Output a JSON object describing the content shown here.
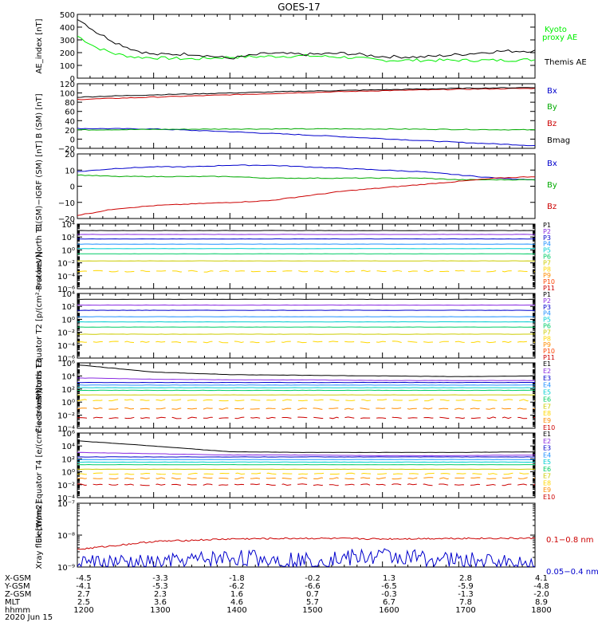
{
  "title": "GOES-17",
  "date_label": "2020 Jun 15",
  "footer": {
    "rows": [
      {
        "label": "X-GSM",
        "values": [
          "-4.5",
          "-3.3",
          "-1.8",
          "-0.2",
          "1.3",
          "2.8",
          "4.1"
        ]
      },
      {
        "label": "Y-GSM",
        "values": [
          "-4.1",
          "-5.3",
          "-6.2",
          "-6.6",
          "-6.5",
          "-5.9",
          "-4.8"
        ]
      },
      {
        "label": "Z-GSM",
        "values": [
          "2.7",
          "2.3",
          "1.6",
          "0.7",
          "-0.3",
          "-1.3",
          "-2.0"
        ]
      },
      {
        "label": "MLT",
        "values": [
          "2.5",
          "3.6",
          "4.6",
          "5.7",
          "6.7",
          "7.8",
          "8.9"
        ]
      },
      {
        "label": "hhmm",
        "values": [
          "1200",
          "1300",
          "1400",
          "1500",
          "1600",
          "1700",
          "1800"
        ]
      }
    ]
  },
  "chart_data": [
    {
      "type": "line",
      "ylabel": "AE_index [nT]",
      "ylim": [
        0,
        500
      ],
      "scale": "linear",
      "yticks": [
        "0",
        "100",
        "200",
        "300",
        "400",
        "500"
      ],
      "x_hours": [
        12,
        12.25,
        12.5,
        12.75,
        13,
        13.5,
        14,
        14.5,
        15,
        15.5,
        16,
        16.5,
        17,
        17.5,
        18
      ],
      "series": [
        {
          "name": "Kyoto proxy AE",
          "color": "#00ee00",
          "values": [
            330,
            240,
            190,
            165,
            160,
            150,
            165,
            170,
            175,
            165,
            140,
            140,
            140,
            140,
            145
          ]
        },
        {
          "name": "Themis AE",
          "color": "#000000",
          "values": [
            470,
            360,
            280,
            220,
            185,
            190,
            155,
            195,
            185,
            195,
            170,
            165,
            185,
            210,
            215
          ]
        }
      ],
      "legend": [
        "Kyoto",
        "proxy AE",
        "Themis AE"
      ]
    },
    {
      "type": "line",
      "ylabel": "B (SM) [nT]",
      "ylim": [
        -20,
        120
      ],
      "scale": "linear",
      "yticks": [
        "−20",
        "0",
        "20",
        "40",
        "60",
        "80",
        "100",
        "120"
      ],
      "x_hours": [
        12,
        13,
        14,
        15,
        16,
        17,
        18
      ],
      "series": [
        {
          "name": "Bx",
          "color": "#0000cc",
          "values": [
            23,
            22,
            16,
            9,
            1,
            -7,
            -14
          ]
        },
        {
          "name": "By",
          "color": "#00aa00",
          "values": [
            20,
            21,
            22,
            22,
            22,
            21,
            20
          ]
        },
        {
          "name": "Bz",
          "color": "#cc0000",
          "values": [
            86,
            91,
            96,
            101,
            105,
            108,
            110
          ]
        },
        {
          "name": "Bmag",
          "color": "#000000",
          "values": [
            91,
            96,
            100,
            104,
            107,
            110,
            112
          ]
        }
      ],
      "legend": [
        "Bx",
        "By",
        "Bz",
        "Bmag"
      ]
    },
    {
      "type": "line",
      "ylabel": "B (SM)−IGRF (SM) [nT]",
      "ylim": [
        -20,
        20
      ],
      "scale": "linear",
      "yticks": [
        "−20",
        "−10",
        "0",
        "10",
        "20"
      ],
      "x_hours": [
        12,
        12.5,
        13,
        13.5,
        14,
        14.5,
        15,
        15.5,
        16,
        16.5,
        17,
        17.5,
        18
      ],
      "series": [
        {
          "name": "Bx",
          "color": "#0000cc",
          "values": [
            9,
            11,
            12,
            12,
            13,
            13,
            12,
            11,
            10,
            9,
            7,
            5,
            4
          ]
        },
        {
          "name": "By",
          "color": "#00aa00",
          "values": [
            7,
            6,
            6,
            6,
            6,
            5,
            5,
            5,
            5,
            5,
            4,
            4,
            4
          ]
        },
        {
          "name": "Bz",
          "color": "#cc0000",
          "values": [
            -18,
            -14,
            -12,
            -11,
            -10,
            -9,
            -6,
            -3,
            -1,
            1,
            3,
            5,
            6
          ]
        }
      ],
      "legend": [
        "Bx",
        "By",
        "Bz"
      ]
    },
    {
      "type": "line",
      "ylabel": "Protons North T1",
      "ylim": [
        -6,
        4
      ],
      "scale": "log",
      "yticks": [
        "10⁻⁶",
        "10⁻⁴",
        "10⁻²",
        "10⁰",
        "10²",
        "10⁴"
      ],
      "series": [
        {
          "name": "P1",
          "color": "#000000",
          "values": [
            3.0
          ]
        },
        {
          "name": "P2",
          "color": "#8a2be2",
          "values": [
            2.4
          ]
        },
        {
          "name": "P3",
          "color": "#0000cc",
          "values": [
            1.7
          ]
        },
        {
          "name": "P4",
          "color": "#1e90ff",
          "values": [
            0.9
          ]
        },
        {
          "name": "P5",
          "color": "#00ced1",
          "values": [
            0.2
          ]
        },
        {
          "name": "P6",
          "color": "#00cc66",
          "values": [
            -0.6
          ]
        },
        {
          "name": "P7",
          "color": "#cccc00",
          "values": [
            -1.7
          ]
        },
        {
          "name": "P8",
          "color": "#ffd700",
          "values": [
            -3.3
          ]
        },
        {
          "name": "P9",
          "color": "#ff8c00",
          "values": []
        },
        {
          "name": "P10",
          "color": "#ff4500",
          "values": []
        },
        {
          "name": "P11",
          "color": "#cc0000",
          "values": []
        }
      ],
      "legend": [
        "P1",
        "P2",
        "P3",
        "P4",
        "P5",
        "P6",
        "P7",
        "P8",
        "P9",
        "P10",
        "P11"
      ]
    },
    {
      "type": "line",
      "ylabel": "Protons Equator T2 [p/(cm²-s-sr-keV)]",
      "ylim": [
        -6,
        4
      ],
      "scale": "log",
      "yticks": [
        "10⁻⁶",
        "10⁻⁴",
        "10⁻²",
        "10⁰",
        "10²",
        "10⁴"
      ],
      "series": [
        {
          "name": "P1",
          "color": "#000000",
          "values": [
            3.1
          ]
        },
        {
          "name": "P2",
          "color": "#8a2be2",
          "values": [
            2.2
          ]
        },
        {
          "name": "P3",
          "color": "#0000cc",
          "values": [
            1.4
          ]
        },
        {
          "name": "P4",
          "color": "#1e90ff",
          "values": [
            0.4
          ]
        },
        {
          "name": "P5",
          "color": "#00ced1",
          "values": [
            -0.4
          ]
        },
        {
          "name": "P6",
          "color": "#00cc66",
          "values": [
            -1.2
          ]
        },
        {
          "name": "P7",
          "color": "#cccc00",
          "values": [
            -2.3
          ]
        },
        {
          "name": "P8",
          "color": "#ffd700",
          "values": [
            -3.5
          ]
        },
        {
          "name": "P9",
          "color": "#ff8c00",
          "values": []
        },
        {
          "name": "P10",
          "color": "#ff4500",
          "values": []
        },
        {
          "name": "P11",
          "color": "#cc0000",
          "values": []
        }
      ],
      "legend": [
        "P1",
        "P2",
        "P3",
        "P4",
        "P5",
        "P6",
        "P7",
        "P8",
        "P9",
        "P10",
        "P11"
      ]
    },
    {
      "type": "line",
      "ylabel": "Electrons North T3",
      "ylim": [
        -4,
        6
      ],
      "scale": "log",
      "yticks": [
        "10⁻⁴",
        "10⁻²",
        "10⁰",
        "10²",
        "10⁴",
        "10⁶"
      ],
      "series": [
        {
          "name": "E1",
          "color": "#000000",
          "values": [
            5.7,
            4.6,
            4.2,
            4.1,
            4.0,
            3.9,
            4.0
          ]
        },
        {
          "name": "E2",
          "color": "#8a2be2",
          "values": [
            3.7,
            3.5,
            3.4,
            3.4,
            3.3,
            3.3,
            3.3
          ]
        },
        {
          "name": "E3",
          "color": "#0000cc",
          "values": [
            3.0
          ]
        },
        {
          "name": "E4",
          "color": "#1e90ff",
          "values": [
            2.6
          ]
        },
        {
          "name": "E5",
          "color": "#00ced1",
          "values": [
            2.2
          ]
        },
        {
          "name": "E6",
          "color": "#00cc66",
          "values": [
            1.8
          ]
        },
        {
          "name": "E7",
          "color": "#cccc00",
          "values": [
            1.1
          ]
        },
        {
          "name": "E8",
          "color": "#ffd700",
          "values": [
            0.3
          ]
        },
        {
          "name": "E9",
          "color": "#ff8c00",
          "values": [
            -1.0
          ]
        },
        {
          "name": "E10",
          "color": "#cc0000",
          "values": [
            -2.4
          ]
        }
      ],
      "legend": [
        "E1",
        "E2",
        "E3",
        "E4",
        "E5",
        "E6",
        "E7",
        "E8",
        "E9",
        "E10"
      ]
    },
    {
      "type": "line",
      "ylabel": "Electrons Equator T4 [e/(cm²-s-sr-keV)]",
      "ylim": [
        -4,
        6
      ],
      "scale": "log",
      "yticks": [
        "10⁻⁴",
        "10⁻²",
        "10⁰",
        "10²",
        "10⁴",
        "10⁶"
      ],
      "series": [
        {
          "name": "E1",
          "color": "#000000",
          "values": [
            4.8,
            4.0,
            3.1,
            3.0,
            3.0,
            3.0,
            3.1
          ]
        },
        {
          "name": "E2",
          "color": "#8a2be2",
          "values": [
            3.0,
            2.8,
            2.6,
            2.6,
            2.5,
            2.5,
            2.6
          ]
        },
        {
          "name": "E3",
          "color": "#0000cc",
          "values": [
            2.3
          ]
        },
        {
          "name": "E4",
          "color": "#1e90ff",
          "values": [
            1.9
          ]
        },
        {
          "name": "E5",
          "color": "#00ced1",
          "values": [
            1.5
          ]
        },
        {
          "name": "E6",
          "color": "#00cc66",
          "values": [
            1.1
          ]
        },
        {
          "name": "E7",
          "color": "#cccc00",
          "values": [
            0.4
          ]
        },
        {
          "name": "E8",
          "color": "#ffd700",
          "values": [
            -0.3
          ]
        },
        {
          "name": "E9",
          "color": "#ff8c00",
          "values": [
            -1.0
          ]
        },
        {
          "name": "E10",
          "color": "#cc0000",
          "values": [
            -2.0
          ]
        }
      ],
      "legend": [
        "E1",
        "E2",
        "E3",
        "E4",
        "E5",
        "E6",
        "E7",
        "E8",
        "E9",
        "E10"
      ]
    },
    {
      "type": "line",
      "ylabel": "Xray flux [W/m2]",
      "ylim": [
        -9,
        -7
      ],
      "scale": "log",
      "yticks": [
        "10⁻⁹",
        "10⁻⁸",
        "10⁻⁷"
      ],
      "series": [
        {
          "name": "0.1−0.8 nm",
          "color": "#cc0000",
          "values": [
            -8.45,
            -8.2,
            -8.12,
            -8.1,
            -8.12,
            -8.1,
            -8.1
          ]
        },
        {
          "name": "0.05−0.4 nm",
          "color": "#0000cc",
          "values": [
            -8.85,
            -8.9,
            -8.7,
            -8.8,
            -8.65,
            -8.8,
            -8.9
          ]
        }
      ],
      "legend": [
        "0.1−0.8 nm",
        "0.05−0.4 nm"
      ]
    }
  ]
}
